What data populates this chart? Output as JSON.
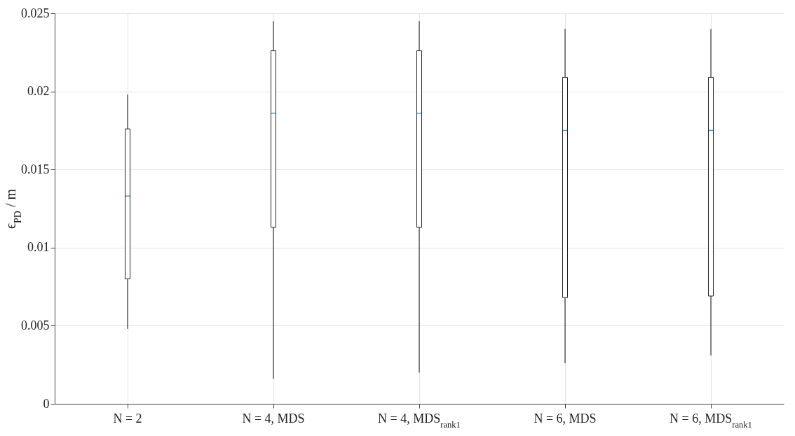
{
  "chart_data": {
    "type": "box",
    "ylabel": "ϵ$_{PD}$ / m",
    "categories": [
      "N = 2",
      "N = 4, MDS",
      "N = 4, MDS$_{rank1}$",
      "N = 6, MDS",
      "N = 6, MDS$_{rank1}$"
    ],
    "boxes": [
      {
        "low": 0.0048,
        "q1": 0.008,
        "median": 0.0133,
        "q3": 0.0176,
        "high": 0.0198
      },
      {
        "low": 0.0016,
        "q1": 0.0113,
        "median": 0.0186,
        "q3": 0.0226,
        "high": 0.0245
      },
      {
        "low": 0.002,
        "q1": 0.0113,
        "median": 0.0186,
        "q3": 0.0226,
        "high": 0.0245
      },
      {
        "low": 0.0026,
        "q1": 0.0068,
        "median": 0.0175,
        "q3": 0.0209,
        "high": 0.024
      },
      {
        "low": 0.0031,
        "q1": 0.0069,
        "median": 0.0175,
        "q3": 0.0209,
        "high": 0.024
      }
    ],
    "ylim": [
      0,
      0.025
    ],
    "yticks": [
      0,
      0.005,
      0.01,
      0.015,
      0.02,
      0.025
    ],
    "grid": true
  }
}
